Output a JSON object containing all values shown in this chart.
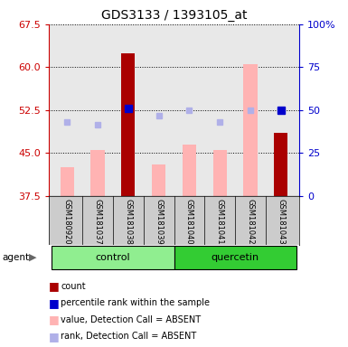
{
  "title": "GDS3133 / 1393105_at",
  "samples": [
    "GSM180920",
    "GSM181037",
    "GSM181038",
    "GSM181039",
    "GSM181040",
    "GSM181041",
    "GSM181042",
    "GSM181043"
  ],
  "groups": [
    {
      "label": "control",
      "color": "#90ee90",
      "samples": [
        0,
        1,
        2,
        3
      ]
    },
    {
      "label": "quercetin",
      "color": "#33cc33",
      "samples": [
        4,
        5,
        6,
        7
      ]
    }
  ],
  "count_bars": {
    "values": [
      null,
      null,
      62.5,
      null,
      null,
      null,
      null,
      48.5
    ],
    "color": "#aa0000"
  },
  "value_absent_bars": {
    "values": [
      42.5,
      45.5,
      null,
      43.0,
      46.5,
      45.5,
      60.5,
      null
    ],
    "color": "#ffb3b3"
  },
  "rank_absent_squares": {
    "values": [
      50.5,
      50.0,
      null,
      51.5,
      52.5,
      50.5,
      52.5,
      null
    ],
    "color": "#b0b0e8"
  },
  "percentile_rank_squares": {
    "values": [
      null,
      null,
      52.8,
      null,
      null,
      null,
      null,
      52.5
    ],
    "color": "#0000cc"
  },
  "left_ylim": [
    37.5,
    67.5
  ],
  "left_yticks": [
    37.5,
    45.0,
    52.5,
    60.0,
    67.5
  ],
  "right_ylim": [
    0,
    100
  ],
  "right_yticks": [
    0,
    25,
    50,
    75,
    100
  ],
  "right_yticklabels": [
    "0",
    "25",
    "50",
    "75",
    "100%"
  ],
  "left_tick_color": "#cc0000",
  "right_tick_color": "#0000cc",
  "plot_bg_color": "#e8e8e8",
  "legend_items": [
    {
      "label": "count",
      "color": "#aa0000"
    },
    {
      "label": "percentile rank within the sample",
      "color": "#0000cc"
    },
    {
      "label": "value, Detection Call = ABSENT",
      "color": "#ffb3b3"
    },
    {
      "label": "rank, Detection Call = ABSENT",
      "color": "#b0b0e8"
    }
  ],
  "agent_label": "agent",
  "bar_width": 0.45
}
